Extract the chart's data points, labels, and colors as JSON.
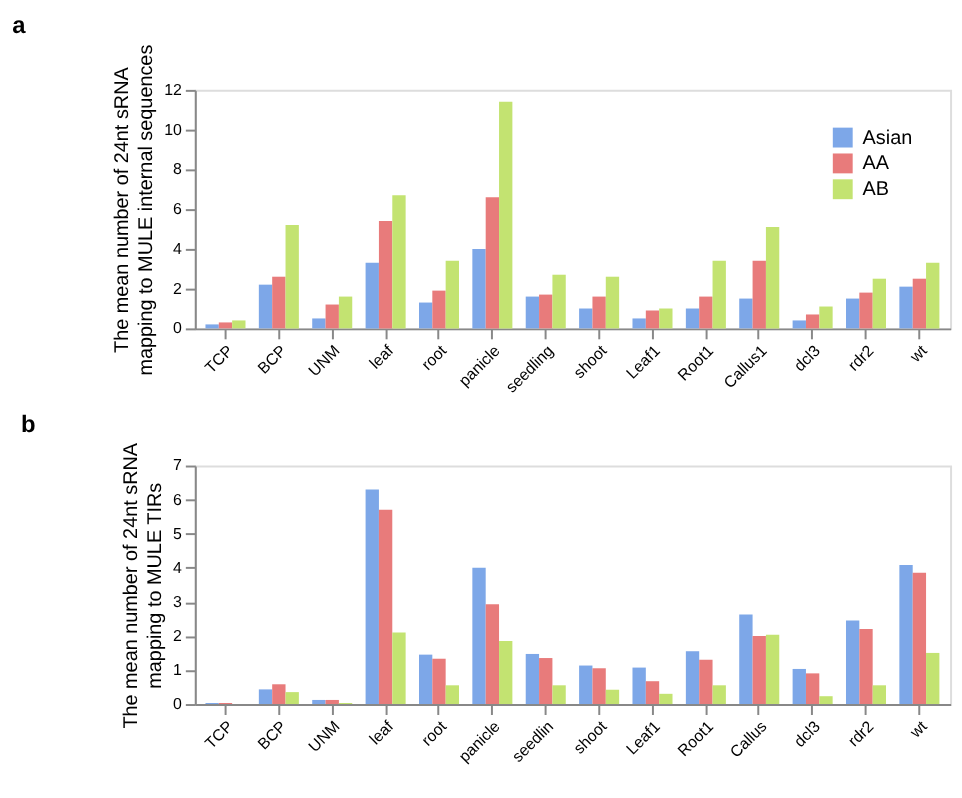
{
  "chart_data": [
    {
      "type": "bar",
      "annotations": [
        "a"
      ],
      "ylabel": "The mean number of 24nt sRNA\nmapping to MULE internal sequences",
      "categories": [
        "TCP",
        "BCP",
        "UNM",
        "leaf",
        "root",
        "panicle",
        "seedling",
        "shoot",
        "Leaf1",
        "Root1",
        "Callus1",
        "dcl3",
        "rdr2",
        "wt"
      ],
      "series": [
        {
          "name": "Asian",
          "color": "#7da7e8",
          "values": [
            0.2,
            2.2,
            0.5,
            3.3,
            1.3,
            4.0,
            1.6,
            1.0,
            0.5,
            1.0,
            1.5,
            0.4,
            1.5,
            2.1
          ]
        },
        {
          "name": "AA",
          "color": "#e87b7b",
          "values": [
            0.3,
            2.6,
            1.2,
            5.4,
            1.9,
            6.6,
            1.7,
            1.6,
            0.9,
            1.6,
            3.4,
            0.7,
            1.8,
            2.5
          ]
        },
        {
          "name": "AB",
          "color": "#c3e371",
          "values": [
            0.4,
            5.2,
            1.6,
            6.7,
            3.4,
            11.4,
            2.7,
            2.6,
            1.0,
            3.4,
            5.1,
            1.1,
            2.5,
            3.3
          ]
        }
      ],
      "ylim": [
        0,
        12
      ],
      "yticks": [
        0,
        2,
        4,
        6,
        8,
        10,
        12
      ],
      "grid": false,
      "legend": "top right"
    },
    {
      "type": "bar",
      "annotations": [
        "b"
      ],
      "ylabel": "The mean number of 24nt sRNA\nmapping to MULE TIRs",
      "categories": [
        "TCP",
        "BCP",
        "UNM",
        "leaf",
        "root",
        "panicle",
        "seedlin",
        "shoot",
        "Leaf1",
        "Root1",
        "Callus",
        "dcl3",
        "rdr2",
        "wt"
      ],
      "series": [
        {
          "color": "#7da7e8",
          "values": [
            0.03,
            0.43,
            0.12,
            6.3,
            1.45,
            4.0,
            1.47,
            1.13,
            1.07,
            1.55,
            2.63,
            1.03,
            2.45,
            4.08
          ]
        },
        {
          "color": "#e87b7b",
          "values": [
            0.03,
            0.58,
            0.12,
            5.7,
            1.33,
            2.93,
            1.35,
            1.05,
            0.67,
            1.3,
            2.0,
            0.9,
            2.2,
            3.85
          ]
        },
        {
          "color": "#c3e371",
          "values": [
            null,
            0.35,
            0.03,
            2.1,
            0.55,
            1.85,
            0.55,
            0.42,
            0.3,
            0.55,
            2.03,
            0.23,
            0.55,
            1.5
          ]
        }
      ],
      "ylim": [
        0,
        7
      ],
      "yticks": [
        0,
        1,
        2,
        3,
        4,
        5,
        6,
        7
      ],
      "grid": false,
      "legend": false
    }
  ]
}
